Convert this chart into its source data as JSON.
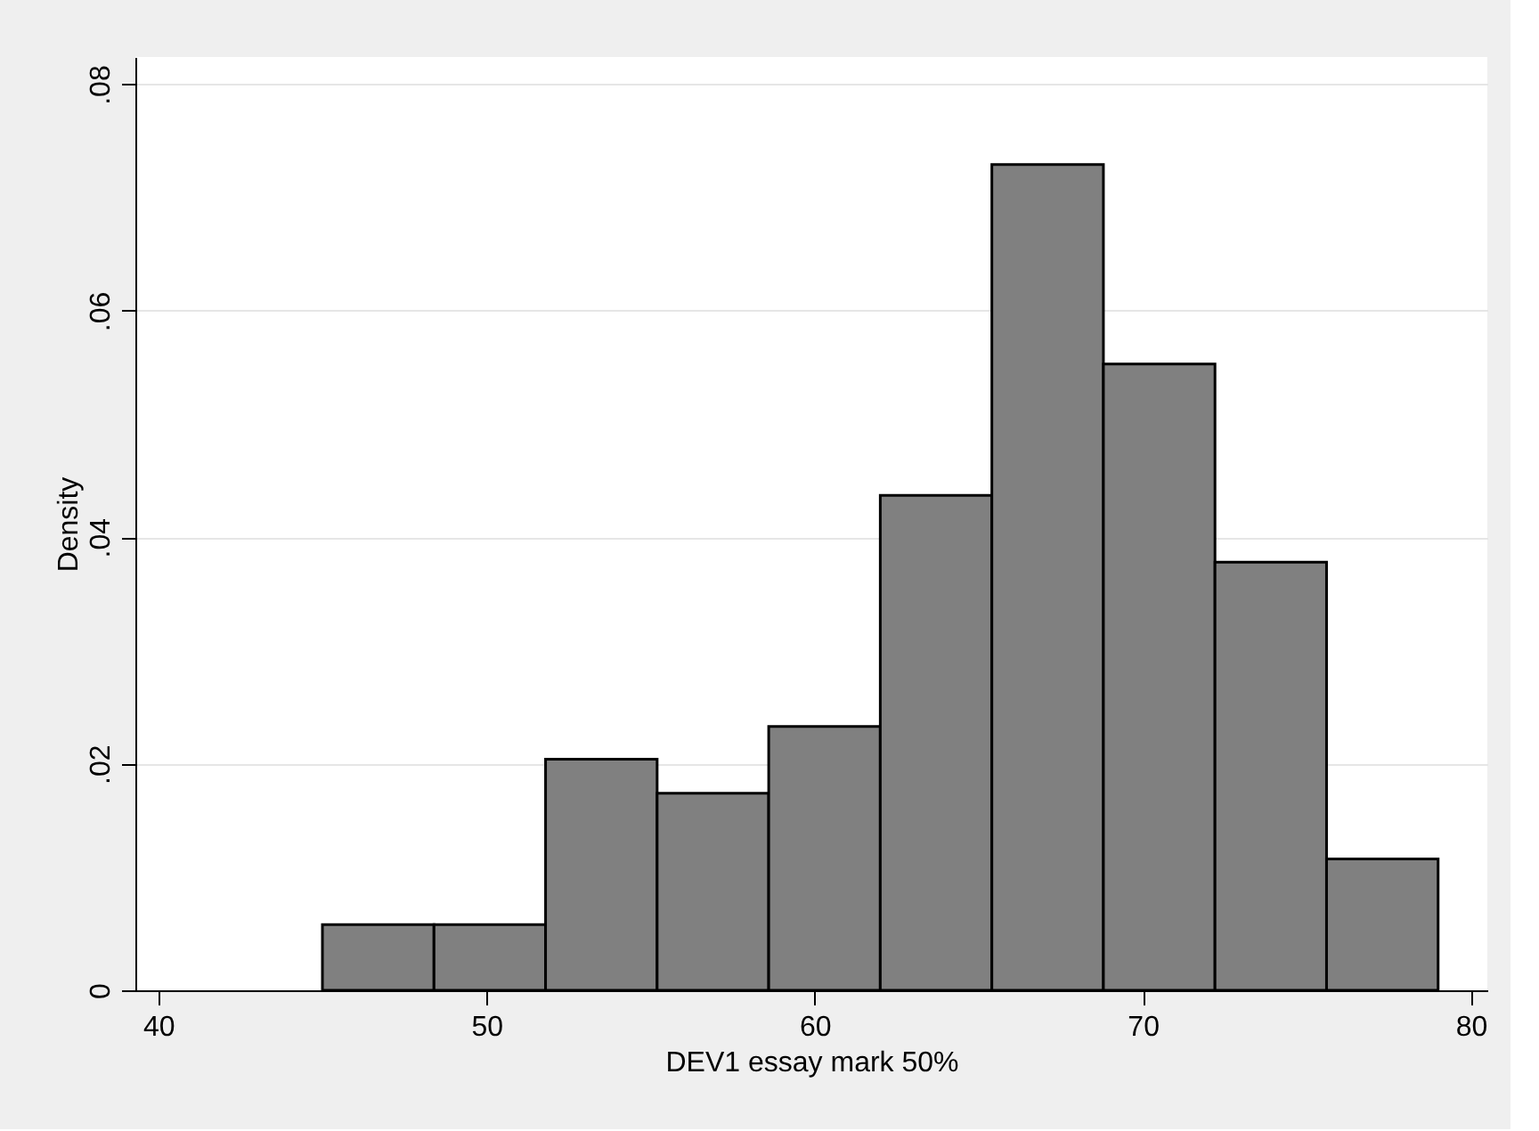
{
  "chart_data": {
    "type": "histogram",
    "xlabel": "DEV1 essay mark 50%",
    "ylabel": "Density",
    "bins": [
      45,
      48.4,
      51.8,
      55.2,
      58.6,
      62,
      65.4,
      68.8,
      72.2,
      75.6,
      79
    ],
    "values": [
      0.0058,
      0.0058,
      0.0204,
      0.0174,
      0.0233,
      0.0437,
      0.0729,
      0.0553,
      0.0378,
      0.0116
    ],
    "color": "#808080",
    "xlim": [
      39.3,
      80.5
    ],
    "xticks": [
      40,
      50,
      60,
      70,
      80
    ],
    "ylim": [
      0,
      0.0824
    ],
    "yticks": [
      {
        "value": 0,
        "label": "0"
      },
      {
        "value": 0.02,
        "label": ".02"
      },
      {
        "value": 0.04,
        "label": ".04"
      },
      {
        "value": 0.06,
        "label": ".06"
      },
      {
        "value": 0.08,
        "label": ".08"
      }
    ],
    "grid": "y"
  }
}
